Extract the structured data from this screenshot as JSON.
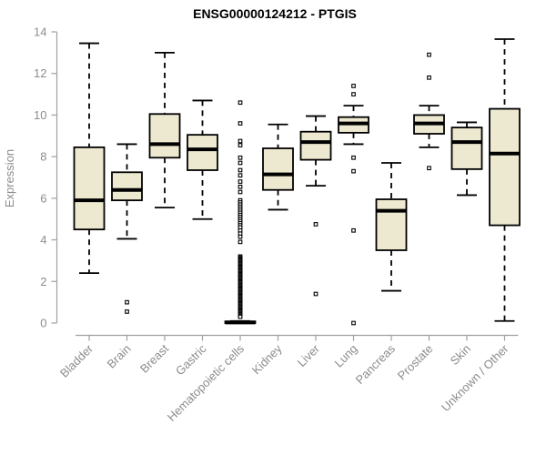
{
  "chart_data": {
    "type": "boxplot",
    "title": "ENSG00000124212 - PTGIS",
    "ylabel": "Expression",
    "ylim": [
      0,
      14
    ],
    "yticks": [
      0,
      2,
      4,
      6,
      8,
      10,
      12,
      14
    ],
    "grid": false,
    "categories": [
      "Bladder",
      "Brain",
      "Breast",
      "Gastric",
      "Hematopoietic cells",
      "Kidney",
      "Liver",
      "Lung",
      "Pancreas",
      "Prostate",
      "Skin",
      "Unknown / Other"
    ],
    "series": [
      {
        "name": "Bladder",
        "low": 2.4,
        "q1": 4.5,
        "median": 5.9,
        "q3": 8.45,
        "high": 13.45,
        "outliers": []
      },
      {
        "name": "Brain",
        "low": 4.05,
        "q1": 5.9,
        "median": 6.4,
        "q3": 7.25,
        "high": 8.6,
        "outliers": [
          1.0,
          0.55
        ]
      },
      {
        "name": "Breast",
        "low": 5.55,
        "q1": 7.95,
        "median": 8.6,
        "q3": 10.05,
        "high": 13.0,
        "outliers": []
      },
      {
        "name": "Gastric",
        "low": 5.0,
        "q1": 7.35,
        "median": 8.35,
        "q3": 9.05,
        "high": 10.7,
        "outliers": []
      },
      {
        "name": "Hematopoietic cells",
        "low": 0,
        "q1": 0,
        "median": 0.03,
        "q3": 0.08,
        "high": 0.1,
        "outliers": [
          10.6,
          9.6,
          8.75,
          8.55,
          7.95,
          7.7,
          7.35,
          7.1,
          6.8,
          6.55,
          6.3,
          5.9,
          5.8,
          5.7,
          5.6,
          5.5,
          5.4,
          5.3,
          5.2,
          5.1,
          5.0,
          4.9,
          4.8,
          4.7,
          4.6,
          4.45,
          4.3,
          4.15,
          3.9,
          3.2,
          3.15,
          3.1,
          3.05,
          3.0,
          2.95,
          2.9,
          2.85,
          2.8,
          2.75,
          2.7,
          2.65,
          2.6,
          2.55,
          2.5,
          2.45,
          2.4,
          2.35,
          2.3,
          2.25,
          2.2,
          2.15,
          2.1,
          2.05,
          2.0,
          1.95,
          1.9,
          1.85,
          1.8,
          1.75,
          1.7,
          1.65,
          1.6,
          1.55,
          1.5,
          1.45,
          1.4,
          1.35,
          1.3,
          1.25,
          1.2,
          1.15,
          1.1,
          1.05,
          1.0,
          0.95,
          0.9,
          0.85,
          0.8,
          0.75,
          0.7,
          0.65,
          0.6,
          0.55,
          0.5,
          0.45,
          0.4,
          0.35,
          0.3
        ]
      },
      {
        "name": "Kidney",
        "low": 5.45,
        "q1": 6.4,
        "median": 7.15,
        "q3": 8.4,
        "high": 9.55,
        "outliers": []
      },
      {
        "name": "Liver",
        "low": 6.6,
        "q1": 7.85,
        "median": 8.7,
        "q3": 9.2,
        "high": 9.95,
        "outliers": [
          4.75,
          1.4
        ]
      },
      {
        "name": "Lung",
        "low": 8.6,
        "q1": 9.15,
        "median": 9.6,
        "q3": 9.9,
        "high": 10.45,
        "outliers": [
          11.4,
          11.0,
          7.95,
          7.3,
          4.45,
          0.0
        ]
      },
      {
        "name": "Pancreas",
        "low": 1.55,
        "q1": 3.5,
        "median": 5.4,
        "q3": 5.95,
        "high": 7.7,
        "outliers": []
      },
      {
        "name": "Prostate",
        "low": 8.45,
        "q1": 9.1,
        "median": 9.6,
        "q3": 10.0,
        "high": 10.45,
        "outliers": [
          12.9,
          11.8,
          7.45
        ]
      },
      {
        "name": "Skin",
        "low": 6.15,
        "q1": 7.4,
        "median": 8.7,
        "q3": 9.4,
        "high": 9.65,
        "outliers": []
      },
      {
        "name": "Unknown / Other",
        "low": 0.1,
        "q1": 4.7,
        "median": 8.15,
        "q3": 10.3,
        "high": 13.65,
        "outliers": []
      }
    ]
  },
  "colors": {
    "box_fill": "#EDE8D0",
    "box_stroke": "#000000",
    "median": "#000000",
    "outlier_stroke": "#000000",
    "axis_line": "#A0A0A0",
    "axis_text": "#8C8C8C",
    "title_text": "#000000",
    "background": "#FFFFFF"
  }
}
